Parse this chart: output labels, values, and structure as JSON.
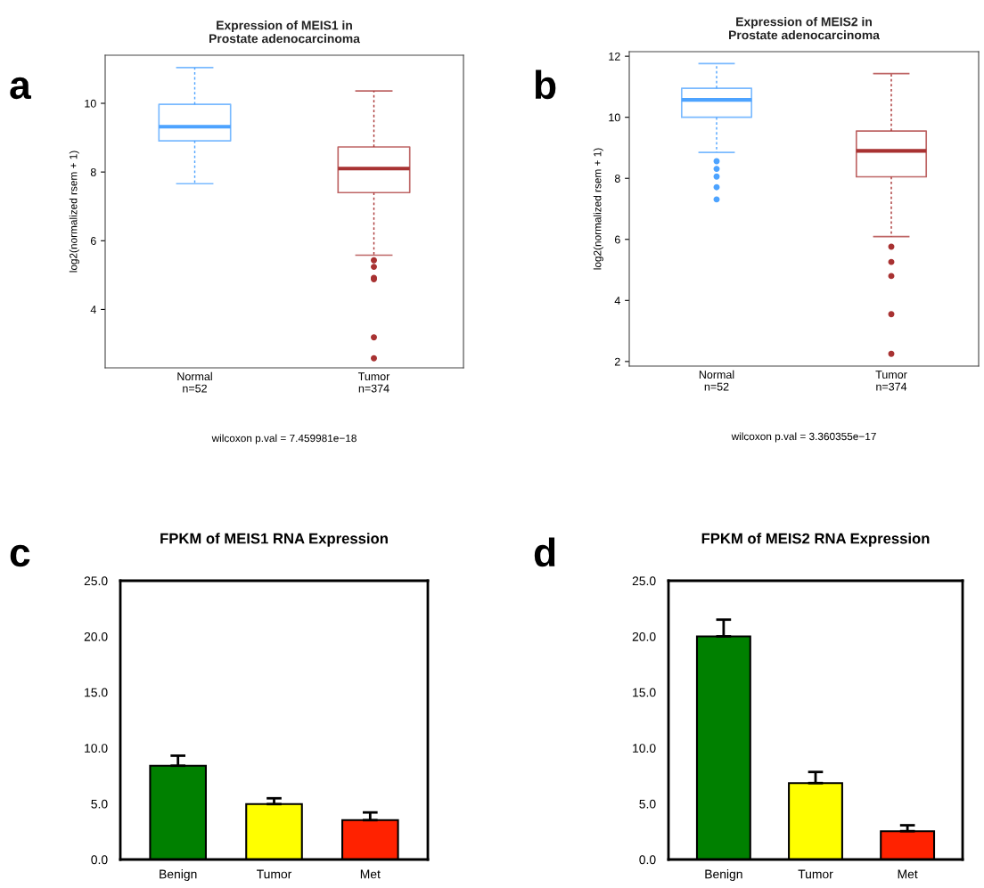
{
  "chart_data": [
    {
      "type": "box",
      "title": "Expression of MEIS1 in\nProstate adenocarcinoma",
      "ylabel": "log2(normalized rsem + 1)",
      "categories": [
        "Normal\nn=52",
        "Tumor\nn=374"
      ],
      "colors": [
        "#4da3ff",
        "#a83232"
      ],
      "ylim": [
        2.3,
        11.4
      ],
      "yticks": [
        4,
        6,
        8,
        10
      ],
      "boxes": [
        {
          "low": 7.66,
          "q1": 8.91,
          "median": 9.32,
          "q3": 9.97,
          "high": 11.04
        },
        {
          "low": 5.58,
          "q1": 7.4,
          "median": 8.1,
          "q3": 8.73,
          "high": 10.36,
          "outliers": [
            5.43,
            5.24,
            4.92,
            4.88,
            3.19,
            2.58
          ]
        }
      ],
      "annotations": [
        "a",
        "wilcoxon p.val = 7.459981e−18"
      ]
    },
    {
      "type": "box",
      "title": "Expression of MEIS2 in\nProstate adenocarcinoma",
      "ylabel": "log2(normalized rsem + 1)",
      "categories": [
        "Normal\nn=52",
        "Tumor\nn=374"
      ],
      "colors": [
        "#4da3ff",
        "#a83232"
      ],
      "ylim": [
        1.85,
        12.15
      ],
      "yticks": [
        2,
        4,
        6,
        8,
        10,
        12
      ],
      "boxes": [
        {
          "low": 8.85,
          "q1": 10.0,
          "median": 10.57,
          "q3": 10.95,
          "high": 11.76,
          "outliers": [
            8.56,
            8.31,
            8.06,
            7.71,
            7.31
          ]
        },
        {
          "low": 6.09,
          "q1": 8.05,
          "median": 8.9,
          "q3": 9.55,
          "high": 11.43,
          "outliers": [
            5.76,
            5.26,
            4.8,
            3.55,
            2.25
          ]
        }
      ],
      "annotations": [
        "b",
        "wilcoxon p.val = 3.360355e−17"
      ]
    },
    {
      "type": "bar",
      "title": "FPKM of MEIS1 RNA Expression",
      "categories": [
        "Benign",
        "Tumor",
        "Met"
      ],
      "values": [
        8.41,
        4.97,
        3.53
      ],
      "errors": [
        0.9,
        0.52,
        0.69
      ],
      "colors": [
        "#008000",
        "#ffff00",
        "#ff2200"
      ],
      "ylim": [
        0,
        25
      ],
      "yticks": [
        {
          "value": 0,
          "label": "0.0"
        },
        {
          "value": 5,
          "label": "5.0"
        },
        {
          "value": 10,
          "label": "10.0"
        },
        {
          "value": 15,
          "label": "15.0"
        },
        {
          "value": 20,
          "label": "20.0"
        },
        {
          "value": 25,
          "label": "25.0"
        }
      ],
      "annotations": [
        "c"
      ]
    },
    {
      "type": "bar",
      "title": "FPKM of MEIS2 RNA Expression",
      "categories": [
        "Benign",
        "Tumor",
        "Met"
      ],
      "values": [
        20.01,
        6.85,
        2.54
      ],
      "errors": [
        1.5,
        1.0,
        0.53
      ],
      "colors": [
        "#008000",
        "#ffff00",
        "#ff2200"
      ],
      "ylim": [
        0,
        25
      ],
      "yticks": [
        {
          "value": 0,
          "label": "0.0"
        },
        {
          "value": 5,
          "label": "5.0"
        },
        {
          "value": 10,
          "label": "10.0"
        },
        {
          "value": 15,
          "label": "15.0"
        },
        {
          "value": 20,
          "label": "20.0"
        },
        {
          "value": 25,
          "label": "25.0"
        }
      ],
      "annotations": [
        "d"
      ]
    }
  ]
}
